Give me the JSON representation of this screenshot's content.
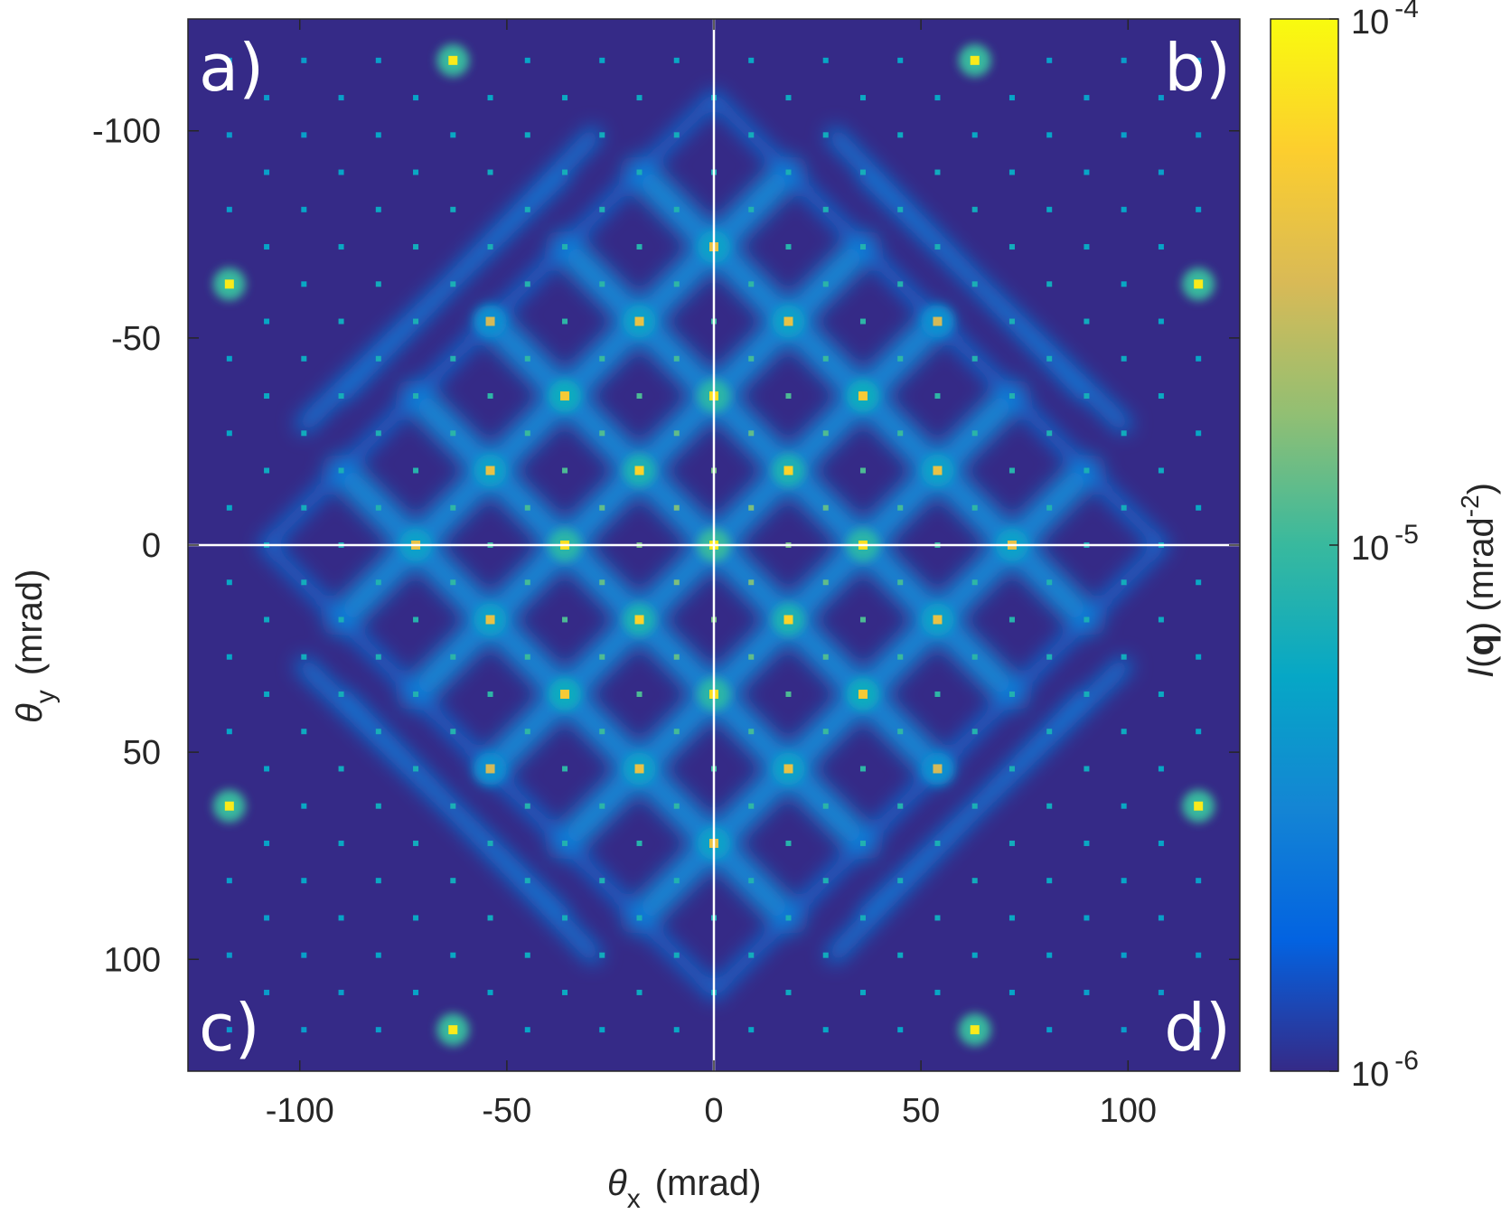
{
  "chart_data": {
    "type": "heatmap",
    "title": "",
    "xlabel": {
      "symbol": "θ",
      "sub": "x",
      "unit": "(mrad)"
    },
    "ylabel": {
      "symbol": "θ",
      "sub": "y",
      "unit": "(mrad)"
    },
    "xlim": [
      -127,
      127
    ],
    "ylim": [
      -127,
      127
    ],
    "y_direction": "reversed",
    "xticks": [
      -100,
      -50,
      0,
      50,
      100
    ],
    "yticks": [
      -100,
      -50,
      0,
      50,
      100
    ],
    "xtick_labels": [
      "-100",
      "-50",
      "0",
      "50",
      "100"
    ],
    "ytick_labels": [
      "-100",
      "-50",
      "0",
      "50",
      "100"
    ],
    "crosshair": {
      "x": 0,
      "y": 0,
      "color": "#ffffff"
    },
    "panel_labels": [
      {
        "text": "a)",
        "corner": "top-left"
      },
      {
        "text": "b)",
        "corner": "top-right"
      },
      {
        "text": "c)",
        "corner": "bottom-left"
      },
      {
        "text": "d)",
        "corner": "bottom-right"
      }
    ],
    "colorbar": {
      "label_italic": "I",
      "label_bold": "q",
      "label_unit_prefix": "(mrad",
      "label_unit_exp": "-2",
      "label_unit_suffix": ")",
      "scale": "log",
      "range": [
        1e-06,
        0.0001
      ],
      "ticks": [
        {
          "value": 0.0001,
          "base": "10",
          "exp": "-4"
        },
        {
          "value": 1e-05,
          "base": "10",
          "exp": "-5"
        },
        {
          "value": 1e-06,
          "base": "10",
          "exp": "-6"
        }
      ],
      "colormap": "parula",
      "colors": [
        "#352a87",
        "#0363e1",
        "#1485d4",
        "#06a7c6",
        "#38b99e",
        "#92bf73",
        "#d9ba56",
        "#fcce2e",
        "#f9fb0e"
      ]
    },
    "diamond_lattice": {
      "spacing_mrad": 18,
      "diagonal_ridges_offsets": [
        -72,
        -36,
        0,
        36,
        72
      ],
      "outer_ridge_offset": 108,
      "ridge_intensity": 2e-06
    },
    "lattice_spots": {
      "spacing_mrad": 9,
      "extent_mrad": 117
    },
    "bright_spots": [
      {
        "x": 0,
        "y": 0,
        "intensity": 8e-05
      },
      {
        "x": -36,
        "y": 0,
        "intensity": 7e-05
      },
      {
        "x": 36,
        "y": 0,
        "intensity": 7e-05
      },
      {
        "x": 0,
        "y": -36,
        "intensity": 7e-05
      },
      {
        "x": 0,
        "y": 36,
        "intensity": 7e-05
      },
      {
        "x": -18,
        "y": -18,
        "intensity": 6e-05
      },
      {
        "x": 18,
        "y": -18,
        "intensity": 6e-05
      },
      {
        "x": -18,
        "y": 18,
        "intensity": 6e-05
      },
      {
        "x": 18,
        "y": 18,
        "intensity": 6e-05
      },
      {
        "x": -36,
        "y": -36,
        "intensity": 5e-05
      },
      {
        "x": 36,
        "y": -36,
        "intensity": 5e-05
      },
      {
        "x": -36,
        "y": 36,
        "intensity": 5e-05
      },
      {
        "x": 36,
        "y": 36,
        "intensity": 5e-05
      },
      {
        "x": -72,
        "y": 0,
        "intensity": 4e-05
      },
      {
        "x": 72,
        "y": 0,
        "intensity": 4e-05
      },
      {
        "x": 0,
        "y": -72,
        "intensity": 4e-05
      },
      {
        "x": 0,
        "y": 72,
        "intensity": 4e-05
      },
      {
        "x": -18,
        "y": -54,
        "intensity": 4e-05
      },
      {
        "x": 18,
        "y": -54,
        "intensity": 4e-05
      },
      {
        "x": -18,
        "y": 54,
        "intensity": 4e-05
      },
      {
        "x": 18,
        "y": 54,
        "intensity": 4e-05
      },
      {
        "x": -54,
        "y": -18,
        "intensity": 4e-05
      },
      {
        "x": 54,
        "y": -18,
        "intensity": 4e-05
      },
      {
        "x": -54,
        "y": 18,
        "intensity": 4e-05
      },
      {
        "x": 54,
        "y": 18,
        "intensity": 4e-05
      },
      {
        "x": -54,
        "y": -54,
        "intensity": 3e-05
      },
      {
        "x": 54,
        "y": -54,
        "intensity": 3e-05
      },
      {
        "x": -54,
        "y": 54,
        "intensity": 3e-05
      },
      {
        "x": 54,
        "y": 54,
        "intensity": 3e-05
      },
      {
        "x": -63,
        "y": -117,
        "intensity": 8e-05
      },
      {
        "x": 63,
        "y": -117,
        "intensity": 8e-05
      },
      {
        "x": -63,
        "y": 117,
        "intensity": 8e-05
      },
      {
        "x": 63,
        "y": 117,
        "intensity": 8e-05
      },
      {
        "x": -117,
        "y": -63,
        "intensity": 8e-05
      },
      {
        "x": 117,
        "y": -63,
        "intensity": 8e-05
      },
      {
        "x": -117,
        "y": 63,
        "intensity": 8e-05
      },
      {
        "x": 117,
        "y": 63,
        "intensity": 8e-05
      }
    ]
  }
}
